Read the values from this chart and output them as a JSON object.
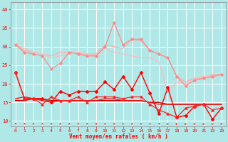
{
  "x": [
    0,
    1,
    2,
    3,
    4,
    5,
    6,
    7,
    8,
    9,
    10,
    11,
    12,
    13,
    14,
    15,
    16,
    17,
    18,
    19,
    20,
    21,
    22,
    23
  ],
  "series": [
    {
      "name": "pink_upper_smooth",
      "color": "#ffaaaa",
      "lw": 0.9,
      "marker": null,
      "y": [
        30.5,
        29.0,
        28.5,
        28.0,
        27.5,
        28.5,
        28.5,
        28.0,
        28.0,
        28.0,
        30.5,
        30.0,
        29.5,
        32.0,
        31.5,
        29.0,
        28.0,
        27.0,
        22.0,
        20.5,
        21.5,
        21.5,
        22.5,
        22.5
      ]
    },
    {
      "name": "pink_jagged_markers",
      "color": "#ff8888",
      "lw": 0.9,
      "marker": "D",
      "ms": 1.8,
      "y": [
        30.5,
        28.5,
        28.0,
        27.5,
        24.0,
        25.5,
        28.5,
        28.0,
        27.5,
        27.5,
        30.0,
        36.5,
        30.5,
        32.0,
        32.0,
        29.0,
        28.0,
        27.0,
        22.0,
        19.5,
        21.0,
        21.5,
        22.0,
        22.5
      ]
    },
    {
      "name": "pink_lower_smooth",
      "color": "#ffbbbb",
      "lw": 0.9,
      "marker": null,
      "y": [
        30.5,
        29.5,
        28.5,
        28.0,
        27.0,
        27.5,
        28.0,
        28.5,
        28.0,
        27.5,
        29.5,
        28.5,
        28.0,
        27.5,
        27.0,
        27.0,
        26.0,
        17.5,
        20.5,
        20.0,
        21.5,
        22.0,
        22.0,
        22.5
      ]
    },
    {
      "name": "red_jagged_diamonds",
      "color": "#ff0000",
      "lw": 1.0,
      "marker": "D",
      "ms": 2.0,
      "y": [
        23.0,
        16.0,
        16.0,
        16.0,
        15.0,
        18.0,
        17.0,
        18.0,
        18.0,
        18.0,
        20.5,
        18.5,
        22.0,
        18.5,
        23.0,
        17.5,
        12.0,
        19.0,
        11.0,
        11.5,
        14.0,
        14.5,
        10.5,
        13.5
      ]
    },
    {
      "name": "red_flat1",
      "color": "#cc0000",
      "lw": 1.0,
      "marker": null,
      "y": [
        15.5,
        15.5,
        16.0,
        16.0,
        15.5,
        15.5,
        15.5,
        15.5,
        15.5,
        15.5,
        15.5,
        15.5,
        15.5,
        15.5,
        15.5,
        15.0,
        15.0,
        14.5,
        14.5,
        14.5,
        14.5,
        14.5,
        14.5,
        14.5
      ]
    },
    {
      "name": "red_flat2",
      "color": "#ee1111",
      "lw": 0.9,
      "marker": null,
      "y": [
        16.0,
        16.5,
        16.0,
        15.5,
        15.0,
        15.5,
        15.5,
        15.5,
        15.5,
        15.5,
        16.0,
        16.0,
        15.5,
        15.5,
        15.5,
        15.0,
        14.5,
        14.5,
        14.5,
        14.5,
        14.5,
        14.5,
        14.5,
        14.5
      ]
    },
    {
      "name": "red_triangles",
      "color": "#ff2222",
      "lw": 0.9,
      "marker": "^",
      "ms": 2.2,
      "y": [
        23.0,
        16.0,
        16.0,
        14.5,
        16.5,
        15.5,
        15.5,
        16.5,
        15.0,
        16.5,
        16.5,
        16.5,
        16.0,
        16.5,
        16.5,
        14.5,
        13.0,
        12.0,
        11.0,
        13.5,
        14.0,
        14.5,
        13.0,
        13.5
      ]
    }
  ],
  "wind_dirs": [
    10,
    10,
    5,
    5,
    5,
    5,
    5,
    5,
    5,
    5,
    5,
    5,
    5,
    5,
    5,
    5,
    15,
    80,
    80,
    80,
    80,
    80,
    80,
    80
  ],
  "xlabel": "Vent moyen/en rafales ( km/h )",
  "ylim": [
    8.5,
    42
  ],
  "xlim": [
    -0.5,
    23.5
  ],
  "yticks": [
    10,
    15,
    20,
    25,
    30,
    35,
    40
  ],
  "xticks": [
    0,
    1,
    2,
    3,
    4,
    5,
    6,
    7,
    8,
    9,
    10,
    11,
    12,
    13,
    14,
    15,
    16,
    17,
    18,
    19,
    20,
    21,
    22,
    23
  ],
  "bg_color": "#b0e8e8",
  "grid_color": "#ffffff",
  "tick_color": "#ff0000",
  "label_color": "#ff0000"
}
